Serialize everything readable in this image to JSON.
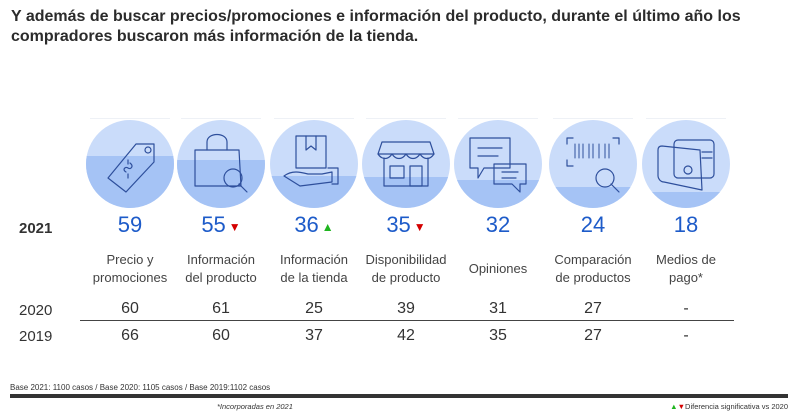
{
  "title": "Y además de buscar precios/promociones e información del producto, durante el último año los compradores buscaron más información de la tienda.",
  "row_labels": {
    "y2021": "2021",
    "y2020": "2020",
    "y2019": "2019"
  },
  "colors": {
    "value_2021": "#1d5bc9",
    "circle_light": "#cadcfa",
    "circle_fill": "#a5c3f5",
    "icon_stroke": "#2e4f9c",
    "sig_up": "#1fb51f",
    "sig_down": "#d40000"
  },
  "chart_data": {
    "type": "table",
    "title": "Y además de buscar precios/promociones e información del producto, durante el último año los compradores buscaron más información de la tienda.",
    "unit": "%",
    "fill_note": "Circle fill level proportional to 2021 value",
    "categories": [
      "Precio y promociones",
      "Información del producto",
      "Información de la tienda",
      "Disponibilidad de producto",
      "Opiniones",
      "Comparación de productos",
      "Medios de pago*"
    ],
    "series": [
      {
        "name": "2021",
        "values": [
          59,
          55,
          36,
          35,
          32,
          24,
          18
        ]
      },
      {
        "name": "2020",
        "values": [
          60,
          61,
          25,
          39,
          31,
          27,
          null
        ]
      },
      {
        "name": "2019",
        "values": [
          66,
          60,
          37,
          42,
          35,
          27,
          null
        ]
      }
    ],
    "significance_vs_2020": [
      "none",
      "down",
      "up",
      "down",
      "none",
      "none",
      "none"
    ]
  },
  "items": [
    {
      "icon": "price-tag-icon",
      "label_line1": "Precio y",
      "label_line2": "promociones",
      "v2021": "59",
      "sig": "",
      "v2020": "60",
      "v2019": "66",
      "fill": 0.59
    },
    {
      "icon": "shopping-bag-search-icon",
      "label_line1": "Información",
      "label_line2": "del producto",
      "v2021": "55",
      "sig": "▼",
      "v2020": "61",
      "v2019": "60",
      "fill": 0.55
    },
    {
      "icon": "hand-package-icon",
      "label_line1": "Información",
      "label_line2": "de la tienda",
      "v2021": "36",
      "sig": "▲",
      "v2020": "25",
      "v2019": "37",
      "fill": 0.36
    },
    {
      "icon": "storefront-icon",
      "label_line1": "Disponibilidad",
      "label_line2": "de producto",
      "v2021": "35",
      "sig": "▼",
      "v2020": "39",
      "v2019": "42",
      "fill": 0.35
    },
    {
      "icon": "chat-bubbles-icon",
      "label_line1": "Opiniones",
      "label_line2": "",
      "v2021": "32",
      "sig": "",
      "v2020": "31",
      "v2019": "35",
      "fill": 0.32
    },
    {
      "icon": "barcode-search-icon",
      "label_line1": "Comparación",
      "label_line2": "de productos",
      "v2021": "24",
      "sig": "",
      "v2020": "27",
      "v2019": "27",
      "fill": 0.24
    },
    {
      "icon": "wallet-icon",
      "label_line1": "Medios de",
      "label_line2": "pago*",
      "v2021": "18",
      "sig": "",
      "v2020": "-",
      "v2019": "-",
      "fill": 0.18
    }
  ],
  "footer": {
    "base": "Base 2021: 1100 casos / Base 2020: 1105 casos / Base 2019:1102 casos",
    "note": "*Incorporadas en 2021",
    "legend_up": "▲",
    "legend_down": "▼",
    "legend_text": "Diferencia significativa vs 2020"
  }
}
